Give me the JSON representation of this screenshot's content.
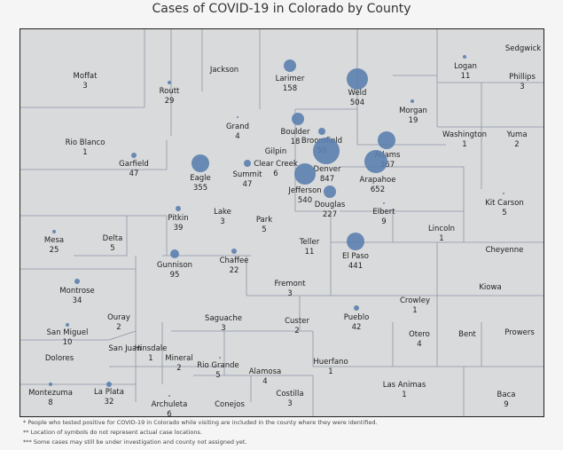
{
  "title": "Cases of COVID-19 in Colorado by County",
  "bubble_color": "#5b7fae",
  "counties": [
    {
      "name": "Moffat",
      "cases": "3"
    },
    {
      "name": "Routt",
      "cases": "29"
    },
    {
      "name": "Jackson",
      "cases": ""
    },
    {
      "name": "Larimer",
      "cases": "158"
    },
    {
      "name": "Weld",
      "cases": "504"
    },
    {
      "name": "Logan",
      "cases": "11"
    },
    {
      "name": "Sedgwick",
      "cases": ""
    },
    {
      "name": "Phillips",
      "cases": "3"
    },
    {
      "name": "Morgan",
      "cases": "19"
    },
    {
      "name": "Rio Blanco",
      "cases": "1"
    },
    {
      "name": "Grand",
      "cases": "4"
    },
    {
      "name": "Boulder",
      "cases": "18"
    },
    {
      "name": "Broomfield",
      "cases": "50"
    },
    {
      "name": "Gilpin",
      "cases": ""
    },
    {
      "name": "Washington",
      "cases": "1"
    },
    {
      "name": "Yuma",
      "cases": "2"
    },
    {
      "name": "Adams",
      "cases": "367"
    },
    {
      "name": "Garfield",
      "cases": "47"
    },
    {
      "name": "Eagle",
      "cases": "355"
    },
    {
      "name": "Summit",
      "cases": "47"
    },
    {
      "name": "Clear Creek",
      "cases": "6"
    },
    {
      "name": "Denver",
      "cases": "847"
    },
    {
      "name": "Arapahoe",
      "cases": "652"
    },
    {
      "name": "Jefferson",
      "cases": "540"
    },
    {
      "name": "Douglas",
      "cases": "227"
    },
    {
      "name": "Lake",
      "cases": "3"
    },
    {
      "name": "Park",
      "cases": "5"
    },
    {
      "name": "Elbert",
      "cases": "9"
    },
    {
      "name": "Kit Carson",
      "cases": "5"
    },
    {
      "name": "Pitkin",
      "cases": "39"
    },
    {
      "name": "Mesa",
      "cases": "25"
    },
    {
      "name": "Delta",
      "cases": "5"
    },
    {
      "name": "Lincoln",
      "cases": "1"
    },
    {
      "name": "Teller",
      "cases": "11"
    },
    {
      "name": "Cheyenne",
      "cases": ""
    },
    {
      "name": "El Paso",
      "cases": "441"
    },
    {
      "name": "Chaffee",
      "cases": "22"
    },
    {
      "name": "Gunnison",
      "cases": "95"
    },
    {
      "name": "Fremont",
      "cases": "3"
    },
    {
      "name": "Kiowa",
      "cases": ""
    },
    {
      "name": "Montrose",
      "cases": "34"
    },
    {
      "name": "Crowley",
      "cases": "1"
    },
    {
      "name": "Ouray",
      "cases": "2"
    },
    {
      "name": "Saguache",
      "cases": "3"
    },
    {
      "name": "Custer",
      "cases": "2"
    },
    {
      "name": "Pueblo",
      "cases": "42"
    },
    {
      "name": "San Miguel",
      "cases": "10"
    },
    {
      "name": "Otero",
      "cases": "4"
    },
    {
      "name": "Bent",
      "cases": ""
    },
    {
      "name": "Prowers",
      "cases": ""
    },
    {
      "name": "San Juan",
      "cases": ""
    },
    {
      "name": "Hinsdale",
      "cases": "1"
    },
    {
      "name": "Dolores",
      "cases": ""
    },
    {
      "name": "Mineral",
      "cases": "2"
    },
    {
      "name": "Rio Grande",
      "cases": "5"
    },
    {
      "name": "Alamosa",
      "cases": "4"
    },
    {
      "name": "Huerfano",
      "cases": "1"
    },
    {
      "name": "Montezuma",
      "cases": "8"
    },
    {
      "name": "La Plata",
      "cases": "32"
    },
    {
      "name": "Archuleta",
      "cases": "6"
    },
    {
      "name": "Conejos",
      "cases": ""
    },
    {
      "name": "Costilla",
      "cases": "3"
    },
    {
      "name": "Las Animas",
      "cases": "1"
    },
    {
      "name": "Baca",
      "cases": "9"
    }
  ],
  "notes": [
    "* People who tested positive for COVID-19 in Colorado while visiting are included in the county where they were identified.",
    "** Location of symbols do not represent actual case locations.",
    "*** Some cases may still be under investigation and county not assigned yet."
  ]
}
